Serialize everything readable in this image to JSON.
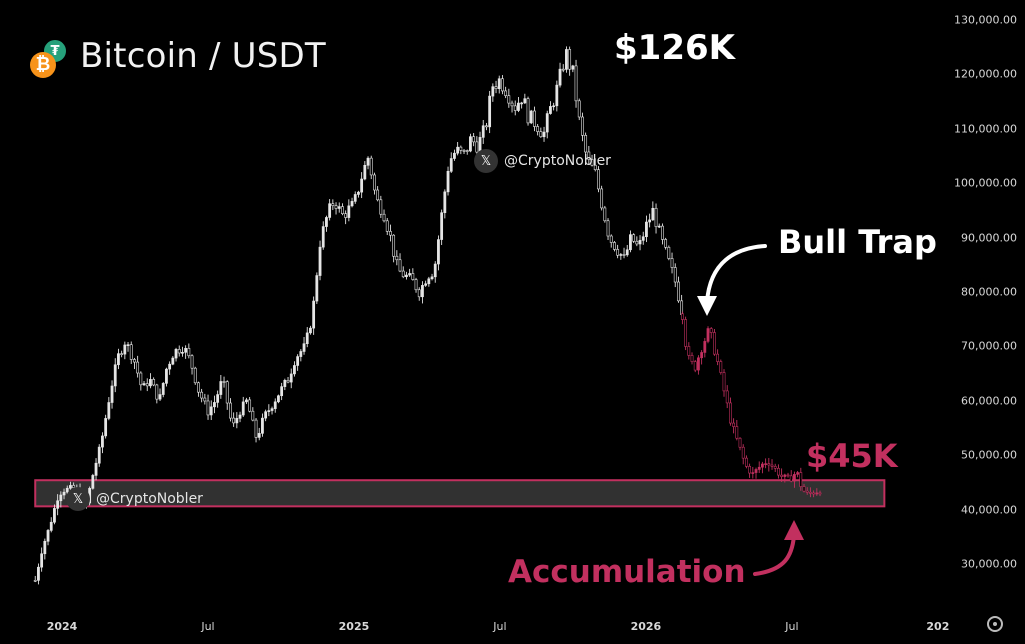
{
  "header": {
    "title": "Bitcoin / USDT",
    "logo_primary_icon": "bitcoin-icon",
    "logo_secondary_icon": "tether-icon"
  },
  "watermarks": [
    {
      "handle": "@CryptoNobler",
      "icon": "x-logo-icon"
    },
    {
      "handle": "@CryptoNobler",
      "icon": "x-logo-icon"
    }
  ],
  "annotations": {
    "peak_label": "$126K",
    "bull_trap_label": "Bull Trap",
    "support_label": "$45K",
    "accumulation_label": "Accumulation"
  },
  "colors": {
    "background": "#000000",
    "candles": "#e6e6e6",
    "highlight": "#c2305f",
    "zone_fill": "#3a3a3a"
  },
  "chart_data": {
    "type": "line",
    "style": "candlestick",
    "ylim": [
      22000,
      132000
    ],
    "y_ticks": [
      {
        "value": 130000,
        "label": "130,000.00"
      },
      {
        "value": 120000,
        "label": "120,000.00"
      },
      {
        "value": 110000,
        "label": "110,000.00"
      },
      {
        "value": 100000,
        "label": "100,000.00"
      },
      {
        "value": 90000,
        "label": "90,000.00"
      },
      {
        "value": 80000,
        "label": "80,000.00"
      },
      {
        "value": 70000,
        "label": "70,000.00"
      },
      {
        "value": 60000,
        "label": "60,000.00"
      },
      {
        "value": 50000,
        "label": "50,000.00"
      },
      {
        "value": 40000,
        "label": "40,000.00"
      },
      {
        "value": 30000,
        "label": "30,000.00"
      }
    ],
    "x_ticks": [
      {
        "label": "2024",
        "bold": true
      },
      {
        "label": "Jul",
        "bold": false
      },
      {
        "label": "2025",
        "bold": true
      },
      {
        "label": "Jul",
        "bold": false
      },
      {
        "label": "2026",
        "bold": true
      },
      {
        "label": "Jul",
        "bold": false
      },
      {
        "label": "202",
        "bold": true
      }
    ],
    "x_tick_months": [
      0,
      6,
      12,
      18,
      24,
      30,
      36
    ],
    "x_range_months": [
      -1.1,
      37.2
    ],
    "series": [
      {
        "style": "historical",
        "points": [
          [
            -1.1,
            27000
          ],
          [
            -0.8,
            33000
          ],
          [
            -0.5,
            37000
          ],
          [
            -0.2,
            42000
          ],
          [
            0.0,
            43500
          ],
          [
            0.5,
            44000
          ],
          [
            0.8,
            42000
          ],
          [
            1.0,
            41000
          ],
          [
            1.3,
            47000
          ],
          [
            1.6,
            52000
          ],
          [
            2.0,
            62000
          ],
          [
            2.3,
            68000
          ],
          [
            2.6,
            71000
          ],
          [
            3.0,
            67000
          ],
          [
            3.3,
            62000
          ],
          [
            3.6,
            64000
          ],
          [
            4.0,
            60000
          ],
          [
            4.3,
            66000
          ],
          [
            4.6,
            69000
          ],
          [
            5.0,
            70000
          ],
          [
            5.3,
            67000
          ],
          [
            5.6,
            62000
          ],
          [
            6.0,
            58000
          ],
          [
            6.3,
            60000
          ],
          [
            6.6,
            64000
          ],
          [
            7.0,
            55000
          ],
          [
            7.3,
            58000
          ],
          [
            7.6,
            60000
          ],
          [
            8.0,
            53000
          ],
          [
            8.3,
            57000
          ],
          [
            8.6,
            59000
          ],
          [
            9.0,
            62000
          ],
          [
            9.3,
            64000
          ],
          [
            9.6,
            68000
          ],
          [
            10.0,
            70000
          ],
          [
            10.3,
            76000
          ],
          [
            10.6,
            89000
          ],
          [
            10.9,
            94000
          ],
          [
            11.2,
            97000
          ],
          [
            11.5,
            94000
          ],
          [
            12.0,
            96000
          ],
          [
            12.3,
            101000
          ],
          [
            12.6,
            105000
          ],
          [
            12.9,
            97000
          ],
          [
            13.2,
            95000
          ],
          [
            13.5,
            90000
          ],
          [
            13.8,
            84000
          ],
          [
            14.1,
            83000
          ],
          [
            14.4,
            82000
          ],
          [
            14.7,
            80000
          ],
          [
            15.0,
            83000
          ],
          [
            15.3,
            84000
          ],
          [
            15.6,
            94000
          ],
          [
            15.9,
            104000
          ],
          [
            16.2,
            106000
          ],
          [
            16.5,
            105000
          ],
          [
            16.8,
            108000
          ],
          [
            17.1,
            107000
          ],
          [
            17.4,
            110000
          ],
          [
            17.7,
            118000
          ],
          [
            18.0,
            119000
          ],
          [
            18.3,
            117000
          ],
          [
            18.6,
            114000
          ],
          [
            18.9,
            116000
          ],
          [
            19.2,
            112000
          ],
          [
            19.5,
            111000
          ],
          [
            19.8,
            109000
          ],
          [
            20.1,
            114000
          ],
          [
            20.4,
            118000
          ],
          [
            20.7,
            124000
          ],
          [
            21.0,
            120000
          ],
          [
            21.3,
            110000
          ],
          [
            21.6,
            104000
          ],
          [
            21.9,
            102000
          ],
          [
            22.2,
            96000
          ],
          [
            22.5,
            90000
          ],
          [
            22.8,
            88000
          ],
          [
            23.1,
            86000
          ],
          [
            23.4,
            90000
          ],
          [
            23.7,
            88000
          ],
          [
            24.0,
            92000
          ],
          [
            24.3,
            95000
          ],
          [
            24.6,
            90000
          ],
          [
            24.9,
            86000
          ],
          [
            25.2,
            82000
          ],
          [
            25.5,
            76000
          ]
        ]
      },
      {
        "style": "highlighted",
        "points": [
          [
            25.5,
            76000
          ],
          [
            25.7,
            68000
          ],
          [
            26.0,
            66000
          ],
          [
            26.3,
            70000
          ],
          [
            26.6,
            73000
          ],
          [
            26.9,
            68000
          ],
          [
            27.2,
            62000
          ],
          [
            27.5,
            56000
          ],
          [
            27.8,
            52000
          ],
          [
            28.1,
            48000
          ],
          [
            28.4,
            46500
          ],
          [
            28.7,
            48000
          ],
          [
            29.0,
            49000
          ],
          [
            29.3,
            47500
          ],
          [
            29.6,
            46000
          ],
          [
            29.9,
            45500
          ],
          [
            30.2,
            47000
          ],
          [
            30.4,
            44000
          ],
          [
            30.6,
            42800
          ],
          [
            30.9,
            43200
          ],
          [
            31.2,
            43600
          ]
        ]
      }
    ],
    "zones": [
      {
        "from_month": -1.1,
        "to_month": 33.8,
        "low": 40600,
        "high": 45400
      }
    ]
  }
}
